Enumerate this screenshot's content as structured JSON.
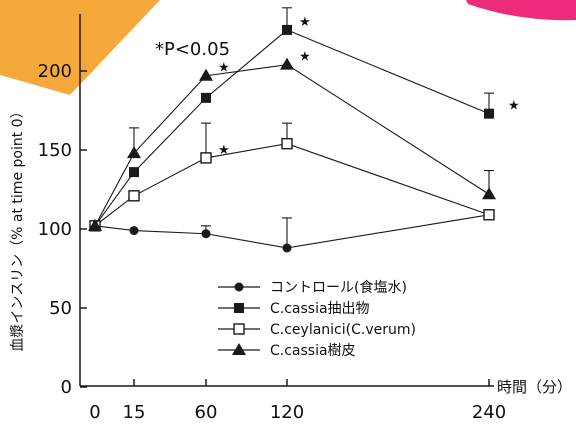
{
  "chart_data": {
    "type": "line",
    "title": "",
    "annotation": "*P<0.05",
    "xlabel": "時間（分）",
    "ylabel": "血漿インスリン（% at time point 0）",
    "x": [
      0,
      15,
      60,
      120,
      240
    ],
    "x_tick_labels": [
      "0",
      "15",
      "60",
      "120",
      "240"
    ],
    "y_ticks": [
      0,
      50,
      100,
      150,
      200
    ],
    "ylim": [
      0,
      230
    ],
    "series": [
      {
        "name": "コントロール(食塩水)",
        "marker": "circle",
        "values": [
          102,
          99,
          97,
          88,
          109
        ],
        "error_up": [
          null,
          null,
          5,
          19,
          null
        ],
        "significant": [
          false,
          false,
          false,
          false,
          false
        ]
      },
      {
        "name": "C.cassia抽出物",
        "marker": "square-filled",
        "values": [
          102,
          136,
          183,
          226,
          173
        ],
        "error_up": [
          null,
          null,
          null,
          14,
          13
        ],
        "significant": [
          false,
          false,
          false,
          true,
          true
        ]
      },
      {
        "name": "C.ceylanici(C.verum)",
        "marker": "square-open",
        "values": [
          102,
          121,
          145,
          154,
          109
        ],
        "error_up": [
          null,
          null,
          22,
          13,
          null
        ],
        "significant": [
          false,
          false,
          true,
          false,
          false
        ]
      },
      {
        "name": "C.cassia樹皮",
        "marker": "triangle",
        "values": [
          102,
          148,
          197,
          204,
          122
        ],
        "error_up": [
          null,
          16,
          null,
          null,
          15
        ],
        "significant": [
          false,
          false,
          true,
          true,
          false
        ]
      }
    ],
    "grid": false,
    "legend_position": "lower-center",
    "colors": {
      "line": "#1a1a1a",
      "decoration_orange": "#f7a83b",
      "decoration_pink": "#ee2a7b"
    }
  }
}
